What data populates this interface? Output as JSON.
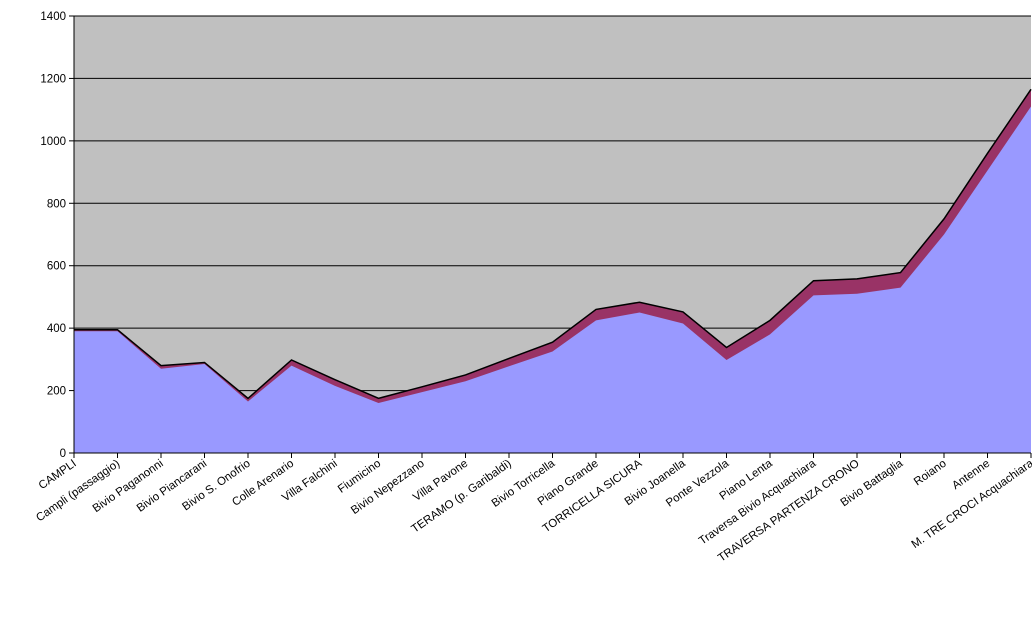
{
  "chart_data": {
    "type": "area",
    "title": "",
    "xlabel": "",
    "ylabel": "",
    "ylim": [
      0,
      1400
    ],
    "yticks": [
      0,
      200,
      400,
      600,
      800,
      1000,
      1200,
      1400
    ],
    "grid": true,
    "legend": "none",
    "categories": [
      "CAMPLI",
      "Campli (passaggio)",
      "Bivio Paganonni",
      "Bivio Piancarani",
      "Bivio S. Onofrio",
      "Colle Arenario",
      "Villa Falchini",
      "Fiumicino",
      "Bivio Nepezzano",
      "Villa Pavone",
      "TERAMO (p. Garibaldi)",
      "Bivio Torricella",
      "Piano Grande",
      "TORRICELLA SICURA",
      "Bivio Joanella",
      "Ponte Vezzola",
      "Piano Lenta",
      "Traversa Bivio Acquachiara",
      "TRAVERSA PARTENZA CRONO",
      "Bivio Battaglia",
      "Roiano",
      "Antenne",
      "M. TRE CROCI Acquachiara"
    ],
    "series": [
      {
        "values": [
          390,
          390,
          270,
          285,
          165,
          280,
          215,
          160,
          195,
          230,
          278,
          325,
          425,
          450,
          415,
          298,
          380,
          505,
          510,
          530,
          700,
          905,
          1110
        ]
      },
      {
        "values": [
          395,
          395,
          280,
          290,
          175,
          298,
          235,
          175,
          212,
          250,
          303,
          355,
          460,
          483,
          452,
          338,
          425,
          552,
          558,
          578,
          750,
          960,
          1165
        ]
      }
    ],
    "colors": {
      "plot_background": "#c0c0c0",
      "lower_area": "#9999ff",
      "upper_band": "#993366",
      "outline": "#000000",
      "gridline": "#000000"
    }
  }
}
